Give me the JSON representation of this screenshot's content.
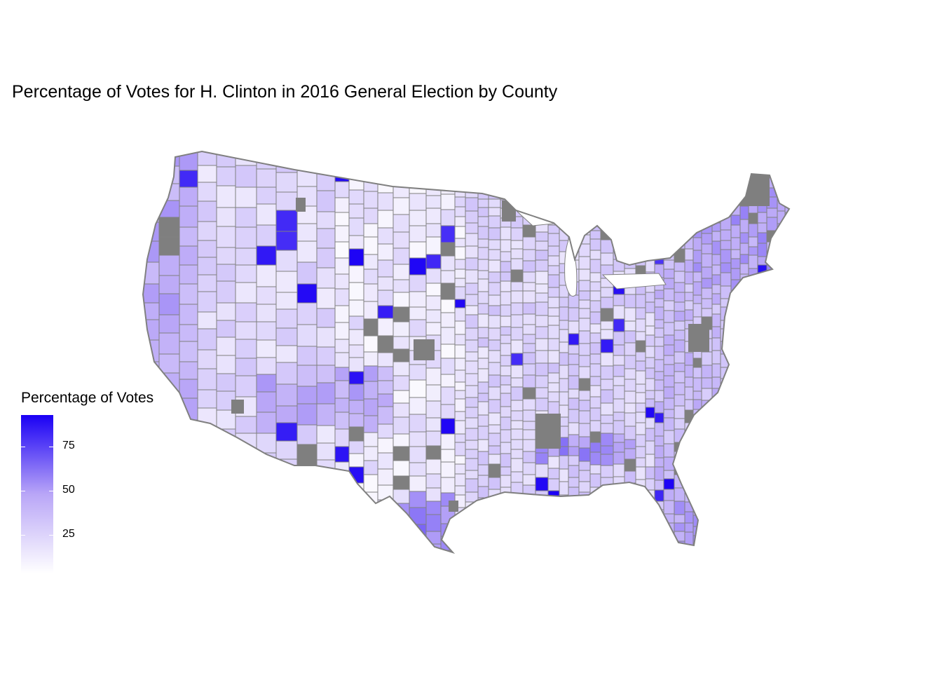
{
  "title": "Percentage of Votes for H. Clinton in 2016 General Election by County",
  "legend": {
    "title": "Percentage of Votes",
    "ticks": [
      {
        "label": "75",
        "value": 75
      },
      {
        "label": "50",
        "value": 50
      },
      {
        "label": "25",
        "value": 25
      }
    ],
    "range": [
      3,
      93
    ],
    "low_color": "#ffffff",
    "high_color": "#1a00f5"
  },
  "map": {
    "region": "Contiguous United States counties",
    "missing_color": "#7f7f7f",
    "border_color": "#808080",
    "fill_scale": "gradient white to blue"
  },
  "chart_data": {
    "type": "heatmap",
    "title": "Percentage of Votes for H. Clinton in 2016 General Election by County",
    "legend_title": "Percentage of Votes",
    "legend_ticks": [
      25,
      50,
      75
    ],
    "value_range": [
      3,
      93
    ],
    "legend_position": "bottom-left",
    "grid": false
  }
}
